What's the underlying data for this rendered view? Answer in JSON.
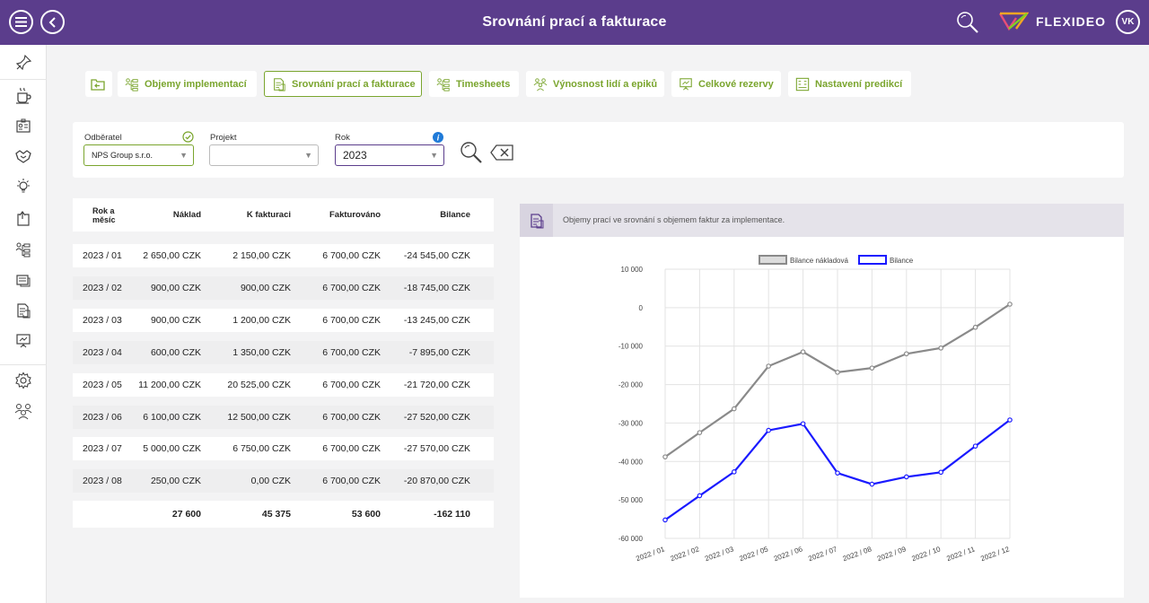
{
  "header": {
    "title": "Srovnání prací a fakturace",
    "brand": "FLEXIDEO",
    "avatar": "VK",
    "accent": "#5b3d8c"
  },
  "sidebar": {
    "items": [
      "pin-icon",
      "coffee-icon",
      "badge-icon",
      "handshake-icon",
      "bulb-icon",
      "export-icon",
      "hierarchy-icon",
      "cards-icon",
      "invoice-icon",
      "presentation-icon",
      "gear-icon",
      "team-icon"
    ]
  },
  "tabs": [
    {
      "label": "",
      "icon": "back-folder-icon"
    },
    {
      "label": "Objemy implementací",
      "icon": "hierarchy-icon"
    },
    {
      "label": "Srovnání prací a fakturace",
      "icon": "invoice-icon",
      "active": true
    },
    {
      "label": "Timesheets",
      "icon": "hierarchy-icon"
    },
    {
      "label": "Výnosnost lidí a epiků",
      "icon": "people-icon"
    },
    {
      "label": "Celkové rezervy",
      "icon": "presentation-icon"
    },
    {
      "label": "Nastavení predikcí",
      "icon": "grid-icon"
    }
  ],
  "filters": {
    "customer": {
      "label": "Odběratel",
      "value": "NPS Group s.r.o."
    },
    "project": {
      "label": "Projekt",
      "value": ""
    },
    "year": {
      "label": "Rok",
      "value": "2023"
    }
  },
  "table": {
    "headers": {
      "month": "Rok a měsíc",
      "cost": "Náklad",
      "to_invoice": "K fakturaci",
      "invoiced": "Fakturováno",
      "balance": "Bilance"
    },
    "rows": [
      [
        "2023 / 01",
        "2 650,00 CZK",
        "2 150,00 CZK",
        "6 700,00 CZK",
        "-24 545,00 CZK"
      ],
      [
        "2023 / 02",
        "900,00 CZK",
        "900,00 CZK",
        "6 700,00 CZK",
        "-18 745,00 CZK"
      ],
      [
        "2023 / 03",
        "900,00 CZK",
        "1 200,00 CZK",
        "6 700,00 CZK",
        "-13 245,00 CZK"
      ],
      [
        "2023 / 04",
        "600,00 CZK",
        "1 350,00 CZK",
        "6 700,00 CZK",
        "-7 895,00 CZK"
      ],
      [
        "2023 / 05",
        "11 200,00 CZK",
        "20 525,00 CZK",
        "6 700,00 CZK",
        "-21 720,00 CZK"
      ],
      [
        "2023 / 06",
        "6 100,00 CZK",
        "12 500,00 CZK",
        "6 700,00 CZK",
        "-27 520,00 CZK"
      ],
      [
        "2023 / 07",
        "5 000,00 CZK",
        "6 750,00 CZK",
        "6 700,00 CZK",
        "-27 570,00 CZK"
      ],
      [
        "2023 / 08",
        "250,00 CZK",
        "0,00 CZK",
        "6 700,00 CZK",
        "-20 870,00 CZK"
      ]
    ],
    "totals": {
      "cost": "27 600",
      "to_invoice": "45 375",
      "invoiced": "53 600",
      "balance": "-162 110"
    }
  },
  "chart_panel": {
    "caption": "Objemy prací ve srovnání s objemem faktur za implementace."
  },
  "chart_data": {
    "type": "line",
    "categories": [
      "2022 / 01",
      "2022 / 02",
      "2022 / 03",
      "2022 / 05",
      "2022 / 06",
      "2022 / 07",
      "2022 / 08",
      "2022 / 09",
      "2022 / 10",
      "2022 / 11",
      "2022 / 12"
    ],
    "series": [
      {
        "name": "Bilance nákladová",
        "color": "#8a8a8a",
        "values": [
          -38800,
          -32500,
          -26300,
          -15200,
          -11500,
          -16800,
          -15700,
          -12000,
          -10500,
          -5100,
          900
        ]
      },
      {
        "name": "Bilance",
        "color": "#1a1aff",
        "values": [
          -55200,
          -48900,
          -42700,
          -31900,
          -30200,
          -43000,
          -45900,
          -44000,
          -42800,
          -36000,
          -29200
        ]
      }
    ],
    "ylim": [
      -60000,
      10000
    ],
    "yticks": [
      "10 000",
      "0",
      "-10 000",
      "-20 000",
      "-30 000",
      "-40 000",
      "-50 000",
      "-60 000"
    ],
    "legend": "top-center",
    "grid": true
  }
}
